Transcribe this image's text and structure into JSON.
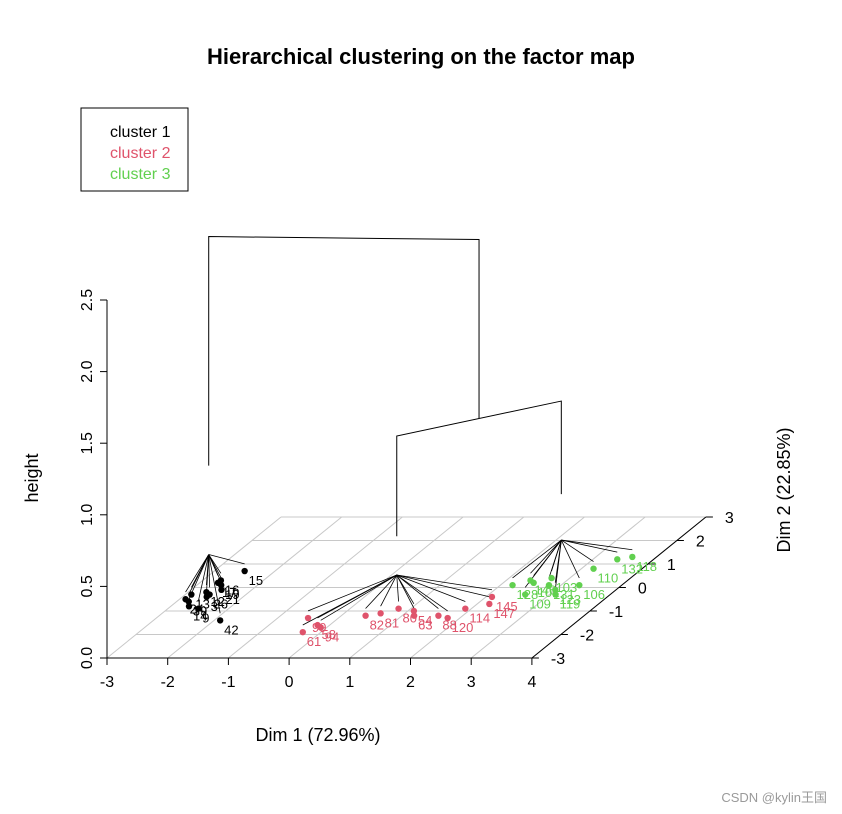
{
  "watermark": "CSDN @kylin王国",
  "chart_data": {
    "type": "scatter",
    "title": "Hierarchical clustering on the factor map",
    "xlabel": "Dim 1 (72.96%)",
    "ylabel": "Dim 2 (22.85%)",
    "zlabel": "height",
    "xlim": [
      -3,
      4
    ],
    "ylim": [
      -3,
      3
    ],
    "zlim": [
      0,
      2.5
    ],
    "x_ticks": [
      "-3",
      "-2",
      "-1",
      "0",
      "1",
      "2",
      "3",
      "4"
    ],
    "y_ticks": [
      "-3",
      "-2",
      "-1",
      "0",
      "1",
      "2",
      "3"
    ],
    "z_ticks": [
      "0.0",
      "0.5",
      "1.0",
      "1.5",
      "2.0",
      "2.5"
    ],
    "grid": true,
    "legend_position": "top-left",
    "legend": [
      {
        "label": "cluster 1",
        "color": "#000000"
      },
      {
        "label": "cluster 2",
        "color": "#DF536B"
      },
      {
        "label": "cluster 3",
        "color": "#61D04F"
      }
    ],
    "dendrogram_top_height": 2.5,
    "series": [
      {
        "name": "cluster 1",
        "color": "#000000",
        "points": [
          {
            "x": -2.7,
            "y": 0.3,
            "label": "16"
          },
          {
            "x": -2.5,
            "y": 0.7,
            "label": "15"
          },
          {
            "x": -2.6,
            "y": 0.1,
            "label": "19"
          },
          {
            "x": -2.7,
            "y": 0.2,
            "label": "17"
          },
          {
            "x": -2.7,
            "y": -0.2,
            "label": "12"
          },
          {
            "x": -2.9,
            "y": -0.5,
            "label": "24"
          },
          {
            "x": -2.6,
            "y": -0.4,
            "label": "3"
          },
          {
            "x": -2.5,
            "y": -0.1,
            "label": "21"
          },
          {
            "x": -2.8,
            "y": -0.6,
            "label": "39"
          },
          {
            "x": -2.7,
            "y": -0.8,
            "label": "14"
          },
          {
            "x": -2.5,
            "y": -0.9,
            "label": "9"
          },
          {
            "x": -1.9,
            "y": -1.4,
            "label": "42"
          },
          {
            "x": -2.6,
            "y": -0.3,
            "label": "26"
          },
          {
            "x": -2.9,
            "y": -0.3,
            "label": "13"
          }
        ]
      },
      {
        "name": "cluster 2",
        "color": "#DF536B",
        "points": [
          {
            "x": -0.5,
            "y": -1.3,
            "label": "99"
          },
          {
            "x": -0.2,
            "y": -1.6,
            "label": "58"
          },
          {
            "x": -0.1,
            "y": -1.7,
            "label": "94"
          },
          {
            "x": -0.3,
            "y": -1.9,
            "label": "61"
          },
          {
            "x": 0.4,
            "y": -1.2,
            "label": "82"
          },
          {
            "x": 0.6,
            "y": -1.1,
            "label": "81"
          },
          {
            "x": 0.8,
            "y": -0.9,
            "label": "80"
          },
          {
            "x": 1.1,
            "y": -1.0,
            "label": "54"
          },
          {
            "x": 1.2,
            "y": -1.2,
            "label": "63"
          },
          {
            "x": 1.6,
            "y": -1.2,
            "label": "88"
          },
          {
            "x": 1.8,
            "y": -1.3,
            "label": "120"
          },
          {
            "x": 1.9,
            "y": -0.9,
            "label": "114"
          },
          {
            "x": 2.2,
            "y": -0.7,
            "label": "147"
          },
          {
            "x": 2.1,
            "y": -0.4,
            "label": "145"
          }
        ]
      },
      {
        "name": "cluster 3",
        "color": "#61D04F",
        "points": [
          {
            "x": 3.6,
            "y": 1.3,
            "label": "118"
          },
          {
            "x": 3.4,
            "y": 1.2,
            "label": "132"
          },
          {
            "x": 3.2,
            "y": 0.8,
            "label": "110"
          },
          {
            "x": 3.3,
            "y": 0.1,
            "label": "106"
          },
          {
            "x": 3.0,
            "y": -0.1,
            "label": "123"
          },
          {
            "x": 3.1,
            "y": -0.3,
            "label": "119"
          },
          {
            "x": 2.6,
            "y": -0.3,
            "label": "109"
          },
          {
            "x": 2.4,
            "y": 0.3,
            "label": "146"
          },
          {
            "x": 2.2,
            "y": 0.1,
            "label": "128"
          },
          {
            "x": 2.5,
            "y": 0.2,
            "label": "101"
          },
          {
            "x": 2.8,
            "y": 0.1,
            "label": "131"
          },
          {
            "x": 2.7,
            "y": 0.4,
            "label": "103"
          }
        ]
      }
    ]
  }
}
